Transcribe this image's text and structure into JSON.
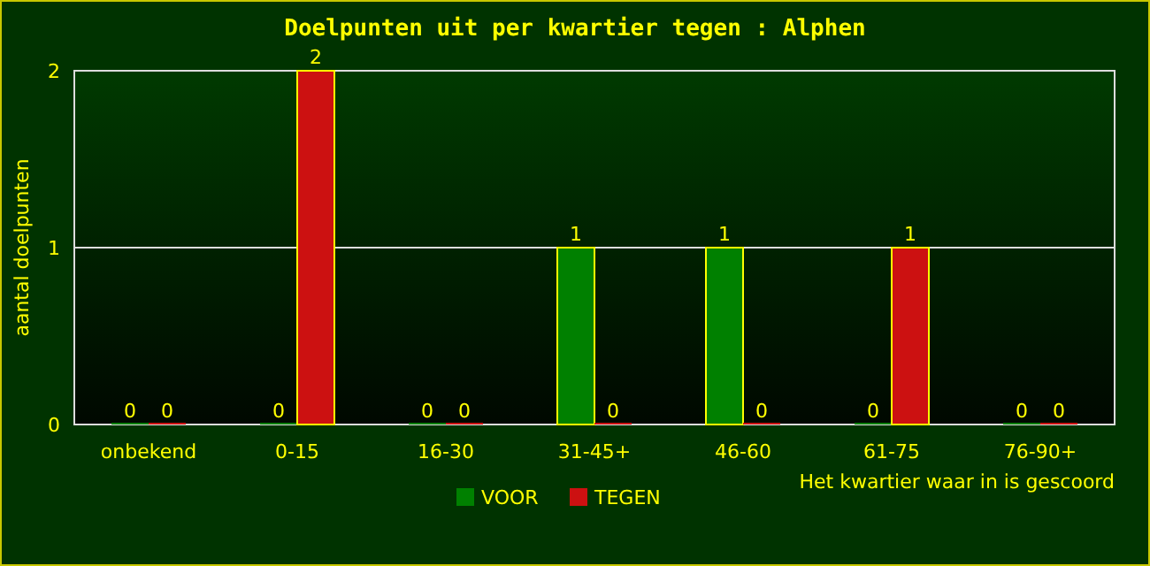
{
  "chart_data": {
    "type": "bar",
    "title": "Doelpunten uit per kwartier tegen : Alphen",
    "xlabel": "Het kwartier waar in is gescoord",
    "ylabel": "aantal doelpunten",
    "categories": [
      "onbekend",
      "0-15",
      "16-30",
      "31-45+",
      "46-60",
      "61-75",
      "76-90+"
    ],
    "series": [
      {
        "name": "VOOR",
        "color": "#008000",
        "values": [
          0,
          0,
          0,
          1,
          1,
          0,
          0
        ]
      },
      {
        "name": "TEGEN",
        "color": "#cc1111",
        "values": [
          0,
          2,
          0,
          0,
          0,
          1,
          0
        ]
      }
    ],
    "ylim": [
      0,
      2
    ],
    "yticks": [
      0,
      1,
      2
    ],
    "grid": "y",
    "legend": "bottom",
    "data_labels": true
  }
}
